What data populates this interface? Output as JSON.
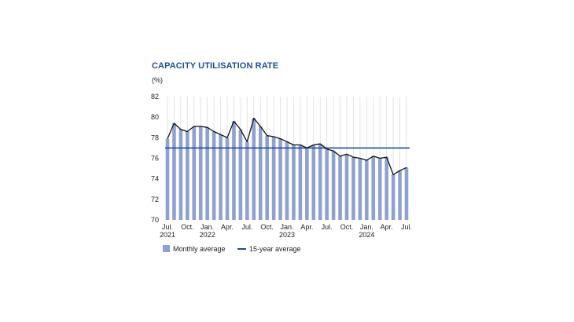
{
  "chart_data": {
    "type": "bar",
    "title": "CAPACITY UTILISATION RATE",
    "ylabel": "(%)",
    "ylim": [
      70,
      82
    ],
    "yticks": [
      70,
      72,
      74,
      76,
      78,
      80,
      82
    ],
    "x_tick_labels": [
      {
        "month": "Jul.",
        "year": "2021"
      },
      {
        "month": "Oct.",
        "year": ""
      },
      {
        "month": "Jan.",
        "year": "2022"
      },
      {
        "month": "Apr.",
        "year": ""
      },
      {
        "month": "Jul.",
        "year": ""
      },
      {
        "month": "Oct.",
        "year": ""
      },
      {
        "month": "Jan.",
        "year": "2023"
      },
      {
        "month": "Apr.",
        "year": ""
      },
      {
        "month": "Jul.",
        "year": ""
      },
      {
        "month": "Oct.",
        "year": ""
      },
      {
        "month": "Jan.",
        "year": "2024"
      },
      {
        "month": "Apr.",
        "year": ""
      },
      {
        "month": "Jul.",
        "year": ""
      }
    ],
    "categories": [
      "Jul 2021",
      "Aug 2021",
      "Sep 2021",
      "Oct 2021",
      "Nov 2021",
      "Dec 2021",
      "Jan 2022",
      "Feb 2022",
      "Mar 2022",
      "Apr 2022",
      "May 2022",
      "Jun 2022",
      "Jul 2022",
      "Aug 2022",
      "Sep 2022",
      "Oct 2022",
      "Nov 2022",
      "Dec 2022",
      "Jan 2023",
      "Feb 2023",
      "Mar 2023",
      "Apr 2023",
      "May 2023",
      "Jun 2023",
      "Jul 2023",
      "Aug 2023",
      "Sep 2023",
      "Oct 2023",
      "Nov 2023",
      "Dec 2023",
      "Jan 2024",
      "Feb 2024",
      "Mar 2024",
      "Apr 2024",
      "May 2024",
      "Jun 2024",
      "Jul 2024"
    ],
    "series": [
      {
        "name": "Monthly average",
        "type": "bar",
        "color": "#8fa0d3",
        "values": [
          77.9,
          79.4,
          78.8,
          78.6,
          79.1,
          79.1,
          79.0,
          78.6,
          78.3,
          78.0,
          79.6,
          78.8,
          77.6,
          79.9,
          79.1,
          78.2,
          78.1,
          77.9,
          77.6,
          77.3,
          77.3,
          77.0,
          77.3,
          77.4,
          76.9,
          76.7,
          76.2,
          76.4,
          76.1,
          76.0,
          75.8,
          76.2,
          76.0,
          76.1,
          74.4,
          74.8,
          75.1
        ]
      },
      {
        "name": "15-year average",
        "type": "line",
        "color": "#1f4e9c",
        "value": 77.0
      }
    ],
    "outline_color": "#111111",
    "legend_position": "bottom-left",
    "grid": "vertical"
  }
}
